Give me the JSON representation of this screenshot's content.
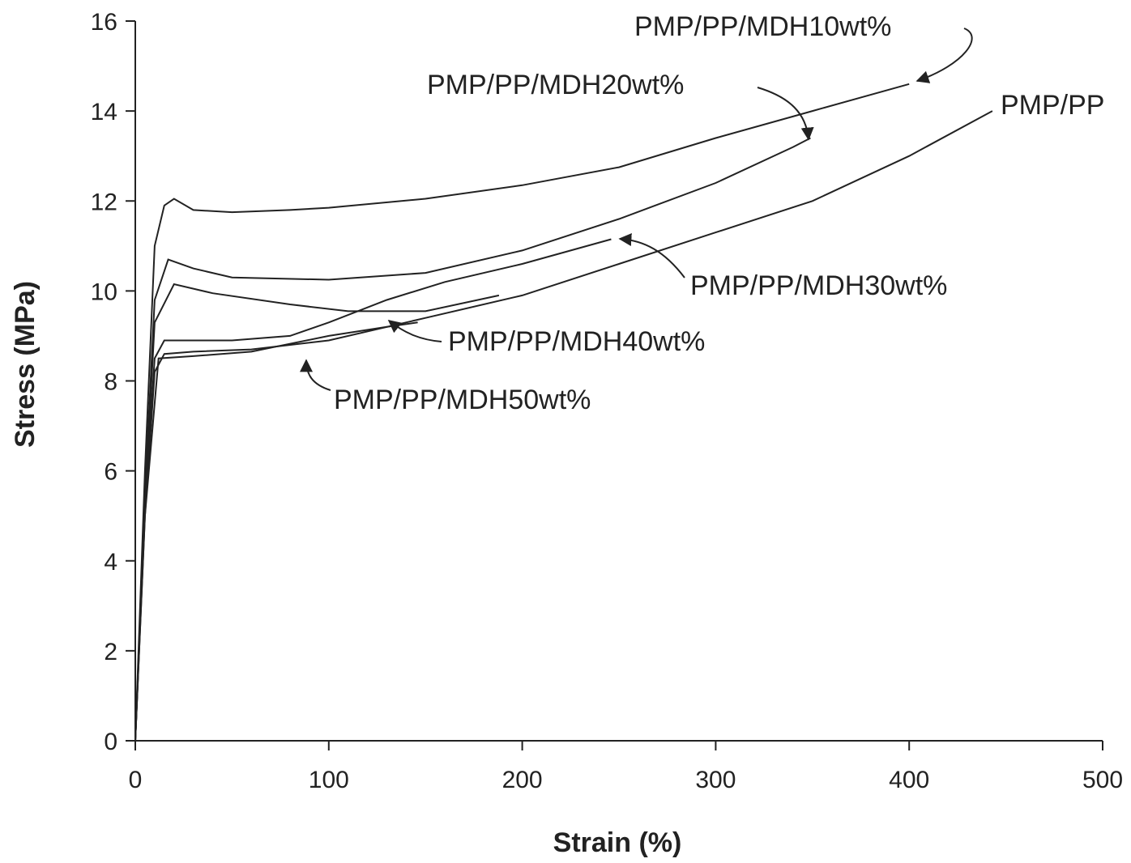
{
  "chart_data": {
    "type": "line",
    "x_label": "Strain (%)",
    "y_label": "Stress (MPa)",
    "xlim": [
      0,
      500
    ],
    "xticks": [
      0,
      100,
      200,
      300,
      400,
      500
    ],
    "ylim": [
      0,
      16
    ],
    "yticks": [
      0,
      2,
      4,
      6,
      8,
      10,
      12,
      14,
      16
    ],
    "series": [
      {
        "name": "PMP/PP/MDH10wt%",
        "color": "#222222",
        "x": [
          0,
          5,
          10,
          15,
          20,
          30,
          50,
          80,
          100,
          150,
          200,
          250,
          300,
          350,
          400
        ],
        "values": [
          0,
          6,
          11,
          11.9,
          12.05,
          11.8,
          11.75,
          11.8,
          11.85,
          12.05,
          12.35,
          12.75,
          13.4,
          14.0,
          14.6
        ]
      },
      {
        "name": "PMP/PP/MDH20wt%",
        "color": "#222222",
        "x": [
          0,
          5,
          10,
          17,
          30,
          50,
          100,
          150,
          200,
          250,
          300,
          340,
          349
        ],
        "values": [
          0,
          5.5,
          9.8,
          10.7,
          10.5,
          10.3,
          10.25,
          10.4,
          10.9,
          11.6,
          12.4,
          13.2,
          13.4
        ]
      },
      {
        "name": "PMP/PP",
        "color": "#222222",
        "x": [
          0,
          5,
          10,
          15,
          30,
          60,
          100,
          150,
          200,
          250,
          300,
          350,
          400,
          443
        ],
        "values": [
          0,
          5,
          8.2,
          8.6,
          8.65,
          8.7,
          8.9,
          9.4,
          9.9,
          10.6,
          11.3,
          12.0,
          13.0,
          14.0
        ]
      },
      {
        "name": "PMP/PP/MDH30wt%",
        "color": "#222222",
        "x": [
          0,
          5,
          10,
          15,
          50,
          80,
          100,
          130,
          160,
          200,
          246
        ],
        "values": [
          0,
          5.2,
          8.5,
          8.9,
          8.9,
          9.0,
          9.3,
          9.8,
          10.2,
          10.6,
          11.15
        ]
      },
      {
        "name": "PMP/PP/MDH40wt%",
        "color": "#222222",
        "x": [
          0,
          5,
          10,
          20,
          40,
          80,
          110,
          150,
          188
        ],
        "values": [
          0,
          5.3,
          9.3,
          10.15,
          9.95,
          9.7,
          9.55,
          9.55,
          9.9
        ]
      },
      {
        "name": "PMP/PP/MDH50wt%",
        "color": "#222222",
        "x": [
          0,
          5,
          12,
          30,
          60,
          100,
          130,
          146
        ],
        "values": [
          0,
          5,
          8.5,
          8.55,
          8.65,
          9.0,
          9.2,
          9.3
        ]
      }
    ]
  }
}
